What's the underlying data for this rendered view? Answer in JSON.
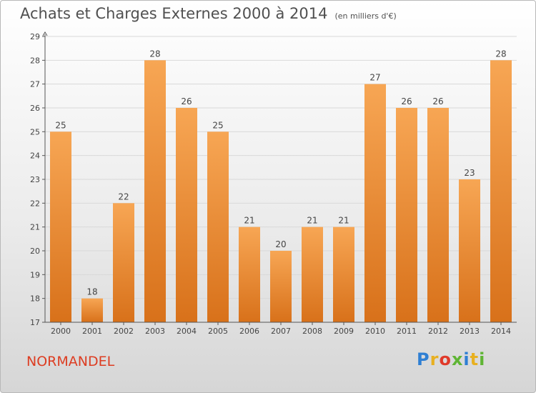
{
  "header": {
    "title": "Achats et Charges Externes 2000 à 2014",
    "unit": "(en milliers d'€)"
  },
  "footer": {
    "place": "NORMANDEL",
    "logo_letters": [
      "P",
      "r",
      "o",
      "x",
      "i",
      "t",
      "i"
    ],
    "logo_colors": [
      "#2f7fd3",
      "#e8b020",
      "#e03a2a",
      "#5fb534",
      "#2f7fd3",
      "#e8b020",
      "#5fb534"
    ]
  },
  "colors": {
    "bar_light": "#f7a654",
    "bar_dark": "#d8711a",
    "axis": "#555555",
    "grid": "#d9d9d9"
  },
  "chart_data": {
    "type": "bar",
    "title": "Achats et Charges Externes 2000 à 2014",
    "subtitle": "(en milliers d'€)",
    "xlabel": "",
    "ylabel": "",
    "categories": [
      "2000",
      "2001",
      "2002",
      "2003",
      "2004",
      "2005",
      "2006",
      "2007",
      "2008",
      "2009",
      "2010",
      "2011",
      "2012",
      "2013",
      "2014"
    ],
    "values": [
      25,
      18,
      22,
      28,
      26,
      25,
      21,
      20,
      21,
      21,
      27,
      26,
      26,
      23,
      28
    ],
    "ylim": [
      17,
      29
    ],
    "yticks": [
      17,
      18,
      19,
      20,
      21,
      22,
      23,
      24,
      25,
      26,
      27,
      28,
      29
    ],
    "grid": true,
    "legend": "none"
  }
}
